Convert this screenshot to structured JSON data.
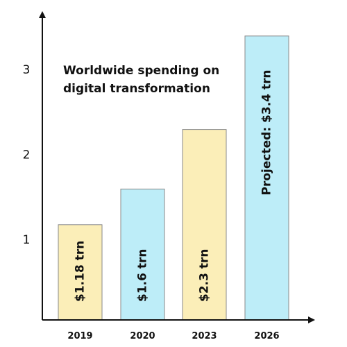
{
  "chart_data": {
    "type": "bar",
    "title_lines": [
      "Worldwide spending on",
      "digital transformation"
    ],
    "xlabel": "",
    "ylabel": "",
    "categories": [
      "2019",
      "2020",
      "2023",
      "2026"
    ],
    "values": [
      1.18,
      1.6,
      2.3,
      3.4
    ],
    "bar_labels": [
      "$1.18 trn",
      "$1.6 trn",
      "$2.3 trn",
      "Projected: $3.4 trn"
    ],
    "yticks": [
      "1",
      "2",
      "3"
    ],
    "ytick_values": [
      1,
      2,
      3
    ],
    "ylim": [
      0.06,
      3.62
    ],
    "grid": false,
    "legend": "none",
    "colors": {
      "yellow": "#fbeeb8",
      "blue": "#bdedf8",
      "outline": "#8a8a8a",
      "axis": "#111111"
    },
    "bar_color_keys": [
      "yellow",
      "blue",
      "yellow",
      "blue"
    ]
  }
}
